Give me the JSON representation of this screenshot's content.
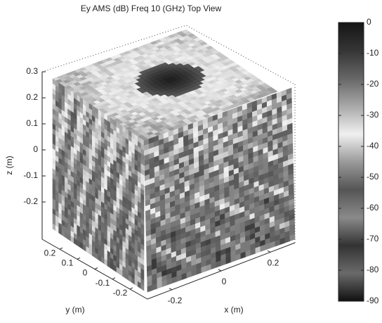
{
  "chart_data": {
    "type": "volume-slice",
    "title": "Ey AMS (dB) Freq 10 (GHz) Top View",
    "xlabel": "x (m)",
    "ylabel": "y (m)",
    "zlabel": "z (m)",
    "xlim": [
      -0.3,
      0.3
    ],
    "xticks": [
      -0.2,
      0,
      0.2
    ],
    "ylim": [
      -0.3,
      0.3
    ],
    "yticks": [
      -0.2,
      -0.1,
      0,
      0.1,
      0.2
    ],
    "zlim": [
      -0.3,
      0.3
    ],
    "zticks": [
      -0.2,
      -0.1,
      0,
      0.1,
      0.2,
      0.3
    ],
    "colorbar": {
      "clim": [
        -90,
        0
      ],
      "ticks": [
        0,
        -10,
        -20,
        -30,
        -40,
        -50,
        -60,
        -70,
        -80,
        -90
      ],
      "colormap": [
        "#151515",
        "#353535",
        "#666666",
        "#a8a8a8",
        "#f0f0f0",
        "#9a9a9a",
        "#555555",
        "#8a8a8a",
        "#333333",
        "#6a6a6a",
        "#101010"
      ]
    }
  }
}
